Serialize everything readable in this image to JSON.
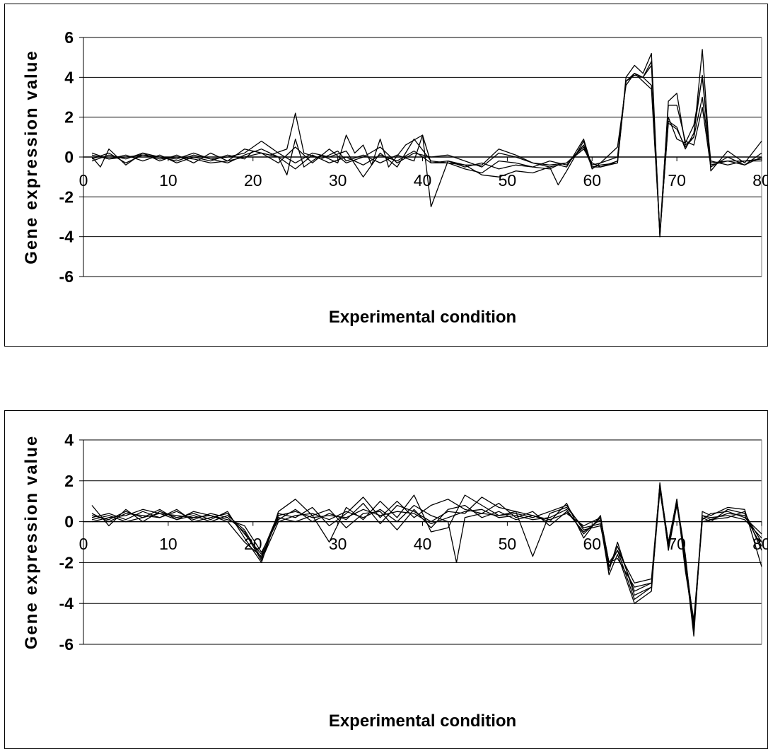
{
  "chart_data": [
    {
      "type": "line",
      "title": "",
      "xlabel": "Experimental condition",
      "ylabel": "Gene expression value",
      "xlim": [
        0,
        80
      ],
      "ylim": [
        -6,
        6
      ],
      "xticks": [
        0,
        10,
        20,
        30,
        40,
        50,
        60,
        70,
        80
      ],
      "yticks": [
        6,
        4,
        2,
        0,
        -2,
        -4,
        -6
      ],
      "grid": true,
      "legend": "none",
      "series": [
        {
          "x": [
            1,
            3,
            5,
            7,
            9,
            11,
            13,
            15,
            17,
            19,
            20,
            22,
            24,
            25,
            26,
            28,
            30,
            31,
            33,
            35,
            37,
            39,
            40,
            41,
            43,
            45,
            47,
            49,
            51,
            53,
            55,
            56,
            57,
            59,
            60,
            61,
            63,
            64,
            65,
            66,
            67,
            68,
            69,
            70,
            71,
            72,
            73,
            74,
            76,
            78,
            80
          ],
          "y": [
            0.2,
            -0.1,
            0.1,
            -0.2,
            0.1,
            -0.3,
            0.0,
            -0.2,
            0.1,
            -0.1,
            0.3,
            0.1,
            0.4,
            2.2,
            0.2,
            -0.1,
            0.3,
            -0.2,
            0.1,
            -0.3,
            0.1,
            -0.2,
            1.1,
            -0.3,
            -0.2,
            -0.5,
            -0.3,
            -0.6,
            -0.4,
            -0.5,
            -0.6,
            -0.4,
            -0.5,
            0.9,
            -0.5,
            -0.4,
            -0.3,
            4.0,
            4.6,
            4.2,
            5.2,
            -4.0,
            2.0,
            0.9,
            0.7,
            1.6,
            4.0,
            -0.4,
            -0.2,
            -0.4,
            0.0
          ]
        },
        {
          "x": [
            1,
            2,
            3,
            5,
            7,
            9,
            11,
            13,
            15,
            17,
            19,
            21,
            23,
            24,
            25,
            26,
            28,
            30,
            31,
            32,
            33,
            34,
            35,
            36,
            38,
            40,
            41,
            43,
            45,
            47,
            49,
            51,
            53,
            55,
            56,
            57,
            59,
            60,
            61,
            63,
            64,
            65,
            66,
            67,
            68,
            69,
            70,
            71,
            72,
            73,
            74,
            76,
            78,
            80
          ],
          "y": [
            0.0,
            -0.5,
            0.4,
            -0.4,
            0.2,
            0.0,
            -0.2,
            0.1,
            -0.1,
            -0.3,
            0.1,
            0.4,
            0.0,
            -0.9,
            0.9,
            -0.5,
            0.1,
            -0.3,
            1.1,
            0.2,
            0.6,
            -0.4,
            0.9,
            -0.5,
            0.6,
            1.1,
            -2.5,
            -0.2,
            -0.4,
            -0.9,
            -1.0,
            -0.7,
            -0.8,
            -0.5,
            -1.4,
            -0.7,
            0.8,
            -0.6,
            -0.3,
            0.5,
            3.6,
            4.2,
            4.0,
            4.6,
            -4.0,
            2.8,
            3.2,
            0.6,
            1.0,
            5.4,
            -0.7,
            0.3,
            -0.3,
            0.8
          ]
        },
        {
          "x": [
            1,
            3,
            5,
            7,
            9,
            11,
            13,
            15,
            17,
            19,
            21,
            23,
            25,
            27,
            29,
            31,
            33,
            35,
            37,
            39,
            41,
            43,
            45,
            47,
            49,
            51,
            53,
            55,
            57,
            59,
            60,
            61,
            63,
            64,
            65,
            66,
            67,
            68,
            69,
            70,
            71,
            72,
            73,
            74,
            76,
            78,
            80
          ],
          "y": [
            -0.2,
            0.1,
            -0.1,
            0.2,
            -0.2,
            0.1,
            -0.3,
            0.2,
            -0.2,
            0.4,
            0.2,
            -0.3,
            0.5,
            -0.3,
            0.4,
            -0.3,
            0.0,
            0.5,
            -0.3,
            0.2,
            0.0,
            0.1,
            -0.2,
            -0.5,
            0.2,
            0.0,
            -0.3,
            -0.5,
            -0.3,
            0.4,
            -0.3,
            -0.5,
            -0.2,
            3.8,
            4.2,
            3.8,
            3.4,
            -3.8,
            2.6,
            2.6,
            0.8,
            0.6,
            2.5,
            -0.5,
            0.0,
            -0.4,
            0.2
          ]
        },
        {
          "x": [
            1,
            3,
            5,
            7,
            9,
            11,
            13,
            15,
            17,
            19,
            21,
            23,
            25,
            27,
            29,
            31,
            33,
            35,
            37,
            39,
            41,
            43,
            45,
            47,
            49,
            51,
            53,
            55,
            57,
            59,
            60,
            61,
            63,
            64,
            65,
            66,
            67,
            68,
            69,
            70,
            71,
            72,
            73,
            74,
            76,
            78,
            80
          ],
          "y": [
            0.1,
            -0.1,
            0.0,
            0.1,
            0.0,
            -0.1,
            0.2,
            -0.1,
            0.0,
            0.2,
            0.8,
            0.2,
            -0.3,
            0.2,
            0.0,
            0.3,
            -1.0,
            0.2,
            -0.5,
            0.9,
            -0.2,
            -0.3,
            -0.6,
            -0.8,
            -0.2,
            -0.3,
            -0.5,
            -0.2,
            -0.4,
            0.6,
            -0.4,
            -0.3,
            0.0,
            3.8,
            4.1,
            4.0,
            4.8,
            -3.9,
            1.8,
            1.5,
            0.4,
            1.2,
            4.1,
            -0.2,
            -0.4,
            -0.2,
            -0.2
          ]
        },
        {
          "x": [
            1,
            3,
            5,
            7,
            9,
            11,
            13,
            15,
            17,
            19,
            21,
            23,
            25,
            27,
            29,
            31,
            33,
            35,
            37,
            39,
            41,
            43,
            45,
            47,
            49,
            51,
            53,
            55,
            57,
            59,
            60,
            61,
            63,
            64,
            65,
            66,
            67,
            68,
            69,
            70,
            71,
            72,
            73,
            74,
            76,
            78,
            80
          ],
          "y": [
            -0.1,
            0.2,
            -0.3,
            0.1,
            -0.1,
            0.0,
            -0.1,
            -0.3,
            -0.2,
            0.0,
            0.2,
            0.0,
            -0.6,
            0.1,
            -0.3,
            0.0,
            -0.4,
            0.1,
            -0.2,
            0.3,
            -0.3,
            -0.3,
            -0.4,
            -0.4,
            0.4,
            0.1,
            -0.3,
            -0.4,
            -0.3,
            0.5,
            -0.5,
            -0.5,
            -0.3,
            3.8,
            4.2,
            4.0,
            3.6,
            -3.8,
            1.7,
            1.4,
            0.5,
            1.0,
            3.0,
            -0.3,
            -0.2,
            -0.2,
            -0.1
          ]
        }
      ]
    },
    {
      "type": "line",
      "title": "",
      "xlabel": "Experimental condition",
      "ylabel": "Gene expression value",
      "xlim": [
        0,
        80
      ],
      "ylim": [
        -6,
        4
      ],
      "xticks": [
        0,
        10,
        20,
        30,
        40,
        50,
        60,
        70,
        80
      ],
      "yticks": [
        4,
        2,
        0,
        -2,
        -4,
        -6
      ],
      "grid": true,
      "legend": "none",
      "series": [
        {
          "x": [
            1,
            3,
            5,
            7,
            9,
            11,
            13,
            15,
            17,
            19,
            21,
            23,
            25,
            27,
            29,
            31,
            33,
            35,
            37,
            39,
            41,
            43,
            45,
            47,
            49,
            51,
            53,
            55,
            57,
            59,
            61,
            62,
            63,
            65,
            67,
            68,
            69,
            70,
            71,
            72,
            73,
            74,
            76,
            78,
            80
          ],
          "y": [
            0.3,
            0.1,
            0.5,
            0.2,
            0.4,
            0.1,
            0.3,
            0.0,
            0.3,
            -0.4,
            -1.8,
            0.3,
            0.5,
            0.2,
            0.3,
            0.2,
            0.6,
            0.3,
            0.5,
            0.4,
            -0.1,
            0.2,
            0.5,
            0.6,
            0.2,
            0.3,
            0.1,
            0.2,
            0.6,
            -0.6,
            0.2,
            -2.0,
            -1.4,
            -3.0,
            -2.8,
            1.8,
            -1.0,
            1.0,
            -1.6,
            -5.4,
            0.3,
            0.2,
            0.3,
            0.1,
            -0.8
          ]
        },
        {
          "x": [
            1,
            3,
            5,
            7,
            9,
            11,
            13,
            15,
            17,
            19,
            21,
            23,
            25,
            27,
            29,
            31,
            33,
            35,
            37,
            39,
            41,
            43,
            45,
            47,
            49,
            51,
            53,
            55,
            57,
            59,
            61,
            62,
            63,
            65,
            67,
            68,
            69,
            70,
            71,
            72,
            73,
            74,
            76,
            78,
            80
          ],
          "y": [
            0.8,
            -0.2,
            0.6,
            0.0,
            0.5,
            0.2,
            0.4,
            0.1,
            0.5,
            -0.8,
            -2.0,
            0.5,
            1.1,
            0.3,
            -1.0,
            0.7,
            0.1,
            1.0,
            0.2,
            1.3,
            -0.5,
            -0.3,
            1.3,
            0.8,
            0.3,
            0.5,
            -1.7,
            0.4,
            0.7,
            -0.3,
            -0.1,
            -2.6,
            -1.6,
            -4.0,
            -3.4,
            1.9,
            -1.2,
            1.1,
            -2.0,
            -5.6,
            0.5,
            0.3,
            0.7,
            0.6,
            -2.2
          ]
        },
        {
          "x": [
            1,
            3,
            5,
            7,
            9,
            11,
            13,
            15,
            17,
            19,
            21,
            23,
            25,
            27,
            29,
            31,
            33,
            35,
            37,
            39,
            41,
            43,
            44,
            45,
            47,
            49,
            51,
            53,
            55,
            57,
            59,
            61,
            62,
            63,
            65,
            67,
            68,
            69,
            70,
            71,
            72,
            73,
            74,
            76,
            78,
            80
          ],
          "y": [
            0.2,
            0.4,
            0.1,
            0.5,
            0.2,
            0.5,
            0.1,
            0.4,
            0.2,
            -0.5,
            -1.9,
            0.0,
            0.3,
            0.4,
            0.1,
            0.5,
            0.2,
            0.6,
            0.0,
            0.8,
            0.3,
            0.0,
            -2.0,
            0.2,
            0.4,
            0.3,
            0.4,
            0.2,
            0.5,
            0.8,
            -0.4,
            -0.2,
            -2.2,
            -1.2,
            -3.4,
            -3.0,
            1.6,
            -1.3,
            0.9,
            -1.8,
            -5.0,
            0.0,
            0.1,
            0.4,
            0.3,
            -1.2
          ]
        },
        {
          "x": [
            1,
            3,
            5,
            7,
            9,
            11,
            13,
            15,
            17,
            19,
            21,
            23,
            25,
            27,
            29,
            31,
            33,
            35,
            37,
            39,
            41,
            43,
            45,
            47,
            49,
            51,
            53,
            55,
            57,
            59,
            61,
            62,
            63,
            65,
            67,
            68,
            69,
            70,
            71,
            72,
            73,
            74,
            76,
            78,
            80
          ],
          "y": [
            0.0,
            0.2,
            0.3,
            0.6,
            0.4,
            0.3,
            0.2,
            0.3,
            0.1,
            -0.2,
            -1.5,
            0.1,
            0.6,
            0.0,
            0.4,
            0.1,
            0.9,
            -0.1,
            0.8,
            0.5,
            0.0,
            0.5,
            0.4,
            1.2,
            0.7,
            0.5,
            0.3,
            0.0,
            0.9,
            -0.8,
            0.3,
            -2.4,
            -1.0,
            -3.6,
            -3.2,
            1.7,
            -1.0,
            1.0,
            -2.2,
            -4.8,
            0.1,
            0.4,
            0.5,
            0.2,
            -0.6
          ]
        },
        {
          "x": [
            1,
            3,
            5,
            7,
            9,
            11,
            13,
            15,
            17,
            19,
            21,
            23,
            25,
            27,
            29,
            31,
            33,
            35,
            37,
            39,
            41,
            43,
            45,
            47,
            49,
            51,
            53,
            55,
            57,
            59,
            61,
            62,
            63,
            65,
            67,
            68,
            69,
            70,
            71,
            72,
            73,
            74,
            76,
            78,
            80
          ],
          "y": [
            0.4,
            0.0,
            0.4,
            0.3,
            0.2,
            0.6,
            0.0,
            0.2,
            0.4,
            -0.6,
            -1.6,
            0.4,
            0.2,
            0.7,
            -0.2,
            0.4,
            1.2,
            0.2,
            1.0,
            0.2,
            0.8,
            1.1,
            0.6,
            0.4,
            0.9,
            0.2,
            0.5,
            -0.2,
            0.5,
            -0.5,
            0.1,
            -2.0,
            -1.8,
            -3.2,
            -3.0,
            1.8,
            -1.4,
            0.8,
            -1.8,
            -5.2,
            0.2,
            0.0,
            0.6,
            0.4,
            -1.0
          ]
        },
        {
          "x": [
            1,
            3,
            5,
            7,
            9,
            11,
            13,
            15,
            17,
            19,
            21,
            23,
            25,
            27,
            29,
            31,
            33,
            35,
            37,
            39,
            41,
            43,
            45,
            47,
            49,
            51,
            53,
            55,
            57,
            59,
            61,
            62,
            63,
            65,
            67,
            68,
            69,
            70,
            71,
            72,
            73,
            74,
            76,
            78,
            80
          ],
          "y": [
            0.1,
            0.3,
            0.0,
            0.2,
            0.6,
            0.1,
            0.5,
            0.3,
            0.0,
            -1.0,
            -1.7,
            0.2,
            0.0,
            0.3,
            0.6,
            -0.3,
            0.4,
            0.5,
            -0.4,
            0.6,
            -0.3,
            0.6,
            0.8,
            0.2,
            0.5,
            0.1,
            0.3,
            0.1,
            0.4,
            -0.2,
            0.2,
            -2.2,
            -1.4,
            -3.8,
            -3.2,
            1.5,
            -1.1,
            1.1,
            -2.4,
            -5.0,
            0.3,
            0.1,
            0.2,
            0.5,
            -1.4
          ]
        }
      ]
    }
  ]
}
